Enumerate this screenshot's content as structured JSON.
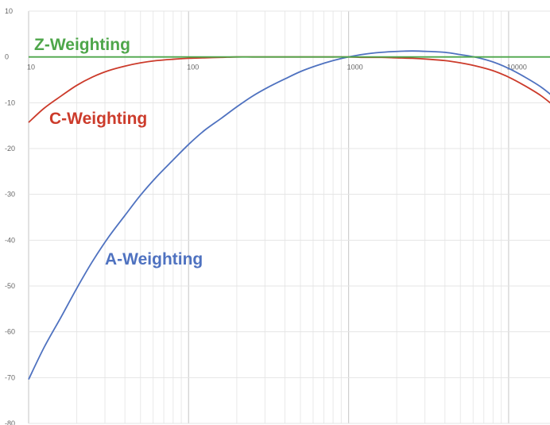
{
  "chart_data": {
    "type": "line",
    "x_scale": "log",
    "xlim": [
      10,
      20000
    ],
    "ylim": [
      -80,
      10
    ],
    "grid": true,
    "x_ticks": [
      10,
      100,
      1000,
      10000
    ],
    "x_tick_labels": [
      "10",
      "100",
      "1000",
      "10000"
    ],
    "y_ticks": [
      10,
      0,
      -10,
      -20,
      -30,
      -40,
      -50,
      -60,
      -70,
      -80
    ],
    "y_tick_labels": [
      "10",
      "0",
      "-10",
      "-20",
      "-30",
      "-40",
      "-50",
      "-60",
      "-70",
      "-80"
    ],
    "series": [
      {
        "name": "Z-Weighting",
        "color": "#4ea64a",
        "x": [
          10,
          20000
        ],
        "y": [
          0,
          0
        ]
      },
      {
        "name": "C-Weighting",
        "color": "#cc3b2b",
        "x": [
          10,
          12.5,
          16,
          20,
          25,
          31.5,
          40,
          50,
          63,
          80,
          100,
          125,
          160,
          200,
          250,
          315,
          400,
          500,
          630,
          800,
          1000,
          1250,
          1600,
          2000,
          2500,
          3150,
          4000,
          5000,
          6300,
          8000,
          10000,
          12500,
          16000,
          20000
        ],
        "y": [
          -14.3,
          -11.2,
          -8.5,
          -6.2,
          -4.4,
          -3.0,
          -2.0,
          -1.3,
          -0.8,
          -0.5,
          -0.3,
          -0.2,
          -0.1,
          0,
          0,
          0,
          0,
          0,
          0,
          0,
          0,
          -0.1,
          -0.1,
          -0.2,
          -0.3,
          -0.5,
          -0.8,
          -1.3,
          -2.0,
          -3.0,
          -4.4,
          -6.2,
          -8.5,
          -11.2
        ]
      },
      {
        "name": "A-Weighting",
        "color": "#4f72c0",
        "x": [
          10,
          12.5,
          16,
          20,
          25,
          31.5,
          40,
          50,
          63,
          80,
          100,
          125,
          160,
          200,
          250,
          315,
          400,
          500,
          630,
          800,
          1000,
          1250,
          1600,
          2000,
          2500,
          3150,
          4000,
          5000,
          6300,
          8000,
          10000,
          12500,
          16000,
          20000
        ],
        "y": [
          -70.4,
          -63.4,
          -56.7,
          -50.5,
          -44.7,
          -39.4,
          -34.6,
          -30.2,
          -26.2,
          -22.5,
          -19.1,
          -16.1,
          -13.4,
          -10.9,
          -8.6,
          -6.6,
          -4.8,
          -3.2,
          -1.9,
          -0.8,
          0,
          0.6,
          1.0,
          1.2,
          1.3,
          1.2,
          1.0,
          0.5,
          -0.1,
          -1.1,
          -2.5,
          -4.3,
          -6.6,
          -9.3
        ]
      }
    ]
  }
}
